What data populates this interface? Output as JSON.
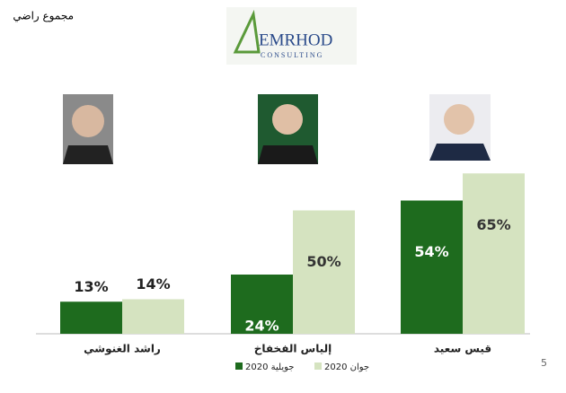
{
  "title": "مجموع راضي",
  "logo": {
    "name": "EMRHOD",
    "subtitle": "CONSULTING"
  },
  "page_number": "5",
  "chart_data": {
    "type": "bar",
    "categories": [
      "راشد الغنوشي",
      "إلياس الفخفاخ",
      "قيس سعيد"
    ],
    "series": [
      {
        "name": "جويلية 2020",
        "color": "#1e6b1e",
        "values": [
          13,
          24,
          54
        ],
        "value_labels": [
          "13%",
          "24%",
          "54%"
        ]
      },
      {
        "name": "جوان 2020",
        "color": "#d5e3c0",
        "values": [
          14,
          50,
          65
        ],
        "value_labels": [
          "14%",
          "50%",
          "65%"
        ]
      }
    ]
  }
}
